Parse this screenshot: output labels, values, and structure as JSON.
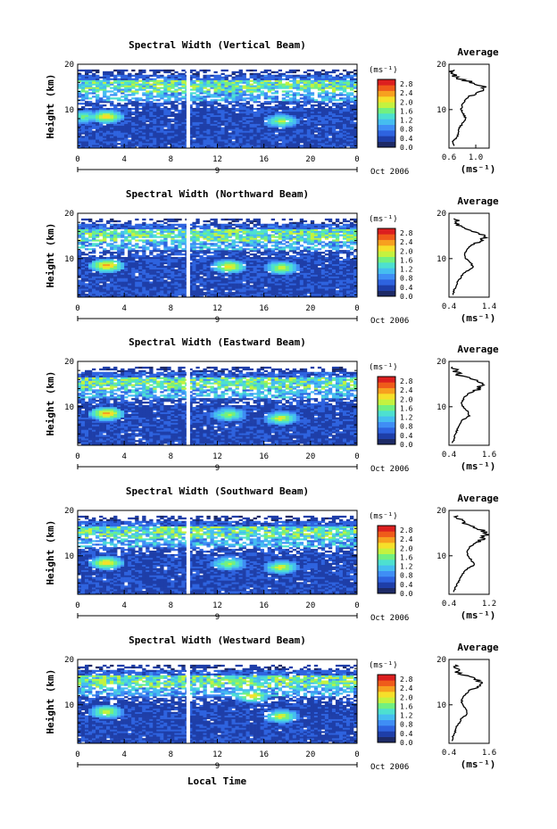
{
  "figure": {
    "xlabel": "Local Time",
    "date_label": "Oct 2006",
    "day_label": "9",
    "units_label": "(ms⁻¹)",
    "avg_title": "Average",
    "avg_xlabel": "(ms⁻¹)"
  },
  "colors": {
    "colormap": [
      "#1d2a66",
      "#1e3ea8",
      "#2e63df",
      "#3f8ef5",
      "#45bdf0",
      "#4de0d0",
      "#72f080",
      "#c4f23f",
      "#f6df2a",
      "#f7a01f",
      "#ef5b1a",
      "#dc1f1f"
    ],
    "marker": "#ffffff"
  },
  "chart_data": [
    {
      "type": "heatmap",
      "title": "Spectral Width (Vertical Beam)",
      "ylabel": "Height (km)",
      "x_ticks": [
        "0",
        "4",
        "8",
        "12",
        "16",
        "20",
        "0"
      ],
      "y_ticks": [
        "20",
        "10"
      ],
      "xlim": [
        0,
        24
      ],
      "ylim": [
        1.5,
        20
      ],
      "colorbar_ticks": [
        "2.8",
        "2.4",
        "2.0",
        "1.6",
        "1.2",
        "0.8",
        "0.4",
        "0.0"
      ],
      "colorbar_range": [
        0.0,
        3.0
      ],
      "gap_time": 9.5,
      "data_top_km": 19,
      "hotspots": [
        {
          "t": 2.5,
          "h": 8.5,
          "v": 2.0
        },
        {
          "t": 17.5,
          "h": 7.5,
          "v": 1.6
        },
        {
          "t": 0.5,
          "h": 8.5,
          "v": 1.4
        }
      ],
      "profile": {
        "xlim": [
          0.6,
          1.2
        ],
        "x_ticks": [
          "0.6",
          "1.0"
        ],
        "y_ticks": [
          "20",
          "10"
        ],
        "heights": [
          2,
          3,
          4,
          5,
          6,
          7,
          8,
          9,
          10,
          11,
          12,
          13,
          14,
          15,
          16,
          17,
          18,
          19
        ],
        "values": [
          0.68,
          0.66,
          0.72,
          0.74,
          0.76,
          0.8,
          0.85,
          0.82,
          0.78,
          0.8,
          0.84,
          0.9,
          1.08,
          1.12,
          0.95,
          0.72,
          0.66,
          0.64
        ]
      }
    },
    {
      "type": "heatmap",
      "title": "Spectral Width (Northward Beam)",
      "ylabel": "Height (km)",
      "x_ticks": [
        "0",
        "4",
        "8",
        "12",
        "16",
        "20",
        "0"
      ],
      "y_ticks": [
        "20",
        "10"
      ],
      "xlim": [
        0,
        24
      ],
      "ylim": [
        1.5,
        20
      ],
      "colorbar_ticks": [
        "2.8",
        "2.4",
        "2.0",
        "1.6",
        "1.2",
        "0.8",
        "0.4",
        "0.0"
      ],
      "colorbar_range": [
        0.0,
        3.0
      ],
      "gap_time": 9.5,
      "data_top_km": 19,
      "hotspots": [
        {
          "t": 2.5,
          "h": 8.5,
          "v": 2.2
        },
        {
          "t": 13.0,
          "h": 8.3,
          "v": 2.0
        },
        {
          "t": 17.5,
          "h": 8.0,
          "v": 1.8
        }
      ],
      "profile": {
        "xlim": [
          0.4,
          1.4
        ],
        "x_ticks": [
          "0.4",
          "1.4"
        ],
        "y_ticks": [
          "20",
          "10"
        ],
        "heights": [
          2,
          3,
          4,
          5,
          6,
          7,
          8,
          9,
          10,
          11,
          12,
          13,
          14,
          15,
          16,
          17,
          18,
          19
        ],
        "values": [
          0.5,
          0.52,
          0.58,
          0.62,
          0.7,
          0.8,
          1.0,
          0.95,
          0.82,
          0.8,
          0.85,
          0.95,
          1.2,
          1.3,
          1.05,
          0.7,
          0.6,
          0.55
        ]
      }
    },
    {
      "type": "heatmap",
      "title": "Spectral Width (Eastward Beam)",
      "ylabel": "Height (km)",
      "x_ticks": [
        "0",
        "4",
        "8",
        "12",
        "16",
        "20",
        "0"
      ],
      "y_ticks": [
        "20",
        "10"
      ],
      "xlim": [
        0,
        24
      ],
      "ylim": [
        1.5,
        20
      ],
      "colorbar_ticks": [
        "2.8",
        "2.4",
        "2.0",
        "1.6",
        "1.2",
        "0.8",
        "0.4",
        "0.0"
      ],
      "colorbar_range": [
        0.0,
        3.0
      ],
      "gap_time": 9.5,
      "data_top_km": 19,
      "hotspots": [
        {
          "t": 2.5,
          "h": 8.5,
          "v": 2.2
        },
        {
          "t": 13.0,
          "h": 8.3,
          "v": 1.6
        },
        {
          "t": 17.5,
          "h": 7.5,
          "v": 1.8
        }
      ],
      "profile": {
        "xlim": [
          0.4,
          1.6
        ],
        "x_ticks": [
          "0.4",
          "1.6"
        ],
        "y_ticks": [
          "20",
          "10"
        ],
        "heights": [
          2,
          3,
          4,
          5,
          6,
          7,
          8,
          9,
          10,
          11,
          12,
          13,
          14,
          15,
          16,
          17,
          18,
          19
        ],
        "values": [
          0.5,
          0.55,
          0.6,
          0.65,
          0.72,
          0.8,
          1.0,
          0.95,
          0.82,
          0.78,
          0.85,
          1.0,
          1.3,
          1.4,
          1.1,
          0.7,
          0.6,
          0.55
        ]
      }
    },
    {
      "type": "heatmap",
      "title": "Spectral Width (Southward Beam)",
      "ylabel": "Height (km)",
      "x_ticks": [
        "0",
        "4",
        "8",
        "12",
        "16",
        "20",
        "0"
      ],
      "y_ticks": [
        "20",
        "10"
      ],
      "xlim": [
        0,
        24
      ],
      "ylim": [
        1.5,
        20
      ],
      "colorbar_ticks": [
        "2.8",
        "2.4",
        "2.0",
        "1.6",
        "1.2",
        "0.8",
        "0.4",
        "0.0"
      ],
      "colorbar_range": [
        0.0,
        3.0
      ],
      "gap_time": 9.5,
      "data_top_km": 19,
      "hotspots": [
        {
          "t": 2.5,
          "h": 8.5,
          "v": 2.0
        },
        {
          "t": 13.0,
          "h": 8.3,
          "v": 1.6
        },
        {
          "t": 17.5,
          "h": 7.5,
          "v": 1.8
        }
      ],
      "profile": {
        "xlim": [
          0.4,
          1.2
        ],
        "x_ticks": [
          "0.4",
          "1.2"
        ],
        "y_ticks": [
          "20",
          "10"
        ],
        "heights": [
          2,
          3,
          4,
          5,
          6,
          7,
          8,
          9,
          10,
          11,
          12,
          13,
          14,
          15,
          16,
          17,
          18,
          19
        ],
        "values": [
          0.5,
          0.52,
          0.58,
          0.62,
          0.68,
          0.75,
          0.9,
          0.85,
          0.78,
          0.75,
          0.82,
          0.95,
          1.1,
          1.15,
          1.0,
          0.7,
          0.6,
          0.55
        ]
      }
    },
    {
      "type": "heatmap",
      "title": "Spectral Width (Westward Beam)",
      "ylabel": "Height (km)",
      "x_ticks": [
        "0",
        "4",
        "8",
        "12",
        "16",
        "20",
        "0"
      ],
      "y_ticks": [
        "20",
        "10"
      ],
      "xlim": [
        0,
        24
      ],
      "ylim": [
        1.5,
        20
      ],
      "colorbar_ticks": [
        "2.8",
        "2.4",
        "2.0",
        "1.6",
        "1.2",
        "0.8",
        "0.4",
        "0.0"
      ],
      "colorbar_range": [
        0.0,
        3.0
      ],
      "gap_time": 9.5,
      "data_top_km": 19,
      "hotspots": [
        {
          "t": 2.5,
          "h": 8.5,
          "v": 1.8
        },
        {
          "t": 15.0,
          "h": 12.0,
          "v": 2.0
        },
        {
          "t": 17.5,
          "h": 7.5,
          "v": 1.8
        }
      ],
      "profile": {
        "xlim": [
          0.4,
          1.6
        ],
        "x_ticks": [
          "0.4",
          "1.6"
        ],
        "y_ticks": [
          "20",
          "10"
        ],
        "heights": [
          2,
          3,
          4,
          5,
          6,
          7,
          8,
          9,
          10,
          11,
          12,
          13,
          14,
          15,
          16,
          17,
          18,
          19
        ],
        "values": [
          0.5,
          0.52,
          0.58,
          0.62,
          0.7,
          0.78,
          0.95,
          0.9,
          0.8,
          0.78,
          0.85,
          1.0,
          1.35,
          1.4,
          1.05,
          0.7,
          0.6,
          0.55
        ]
      }
    }
  ]
}
